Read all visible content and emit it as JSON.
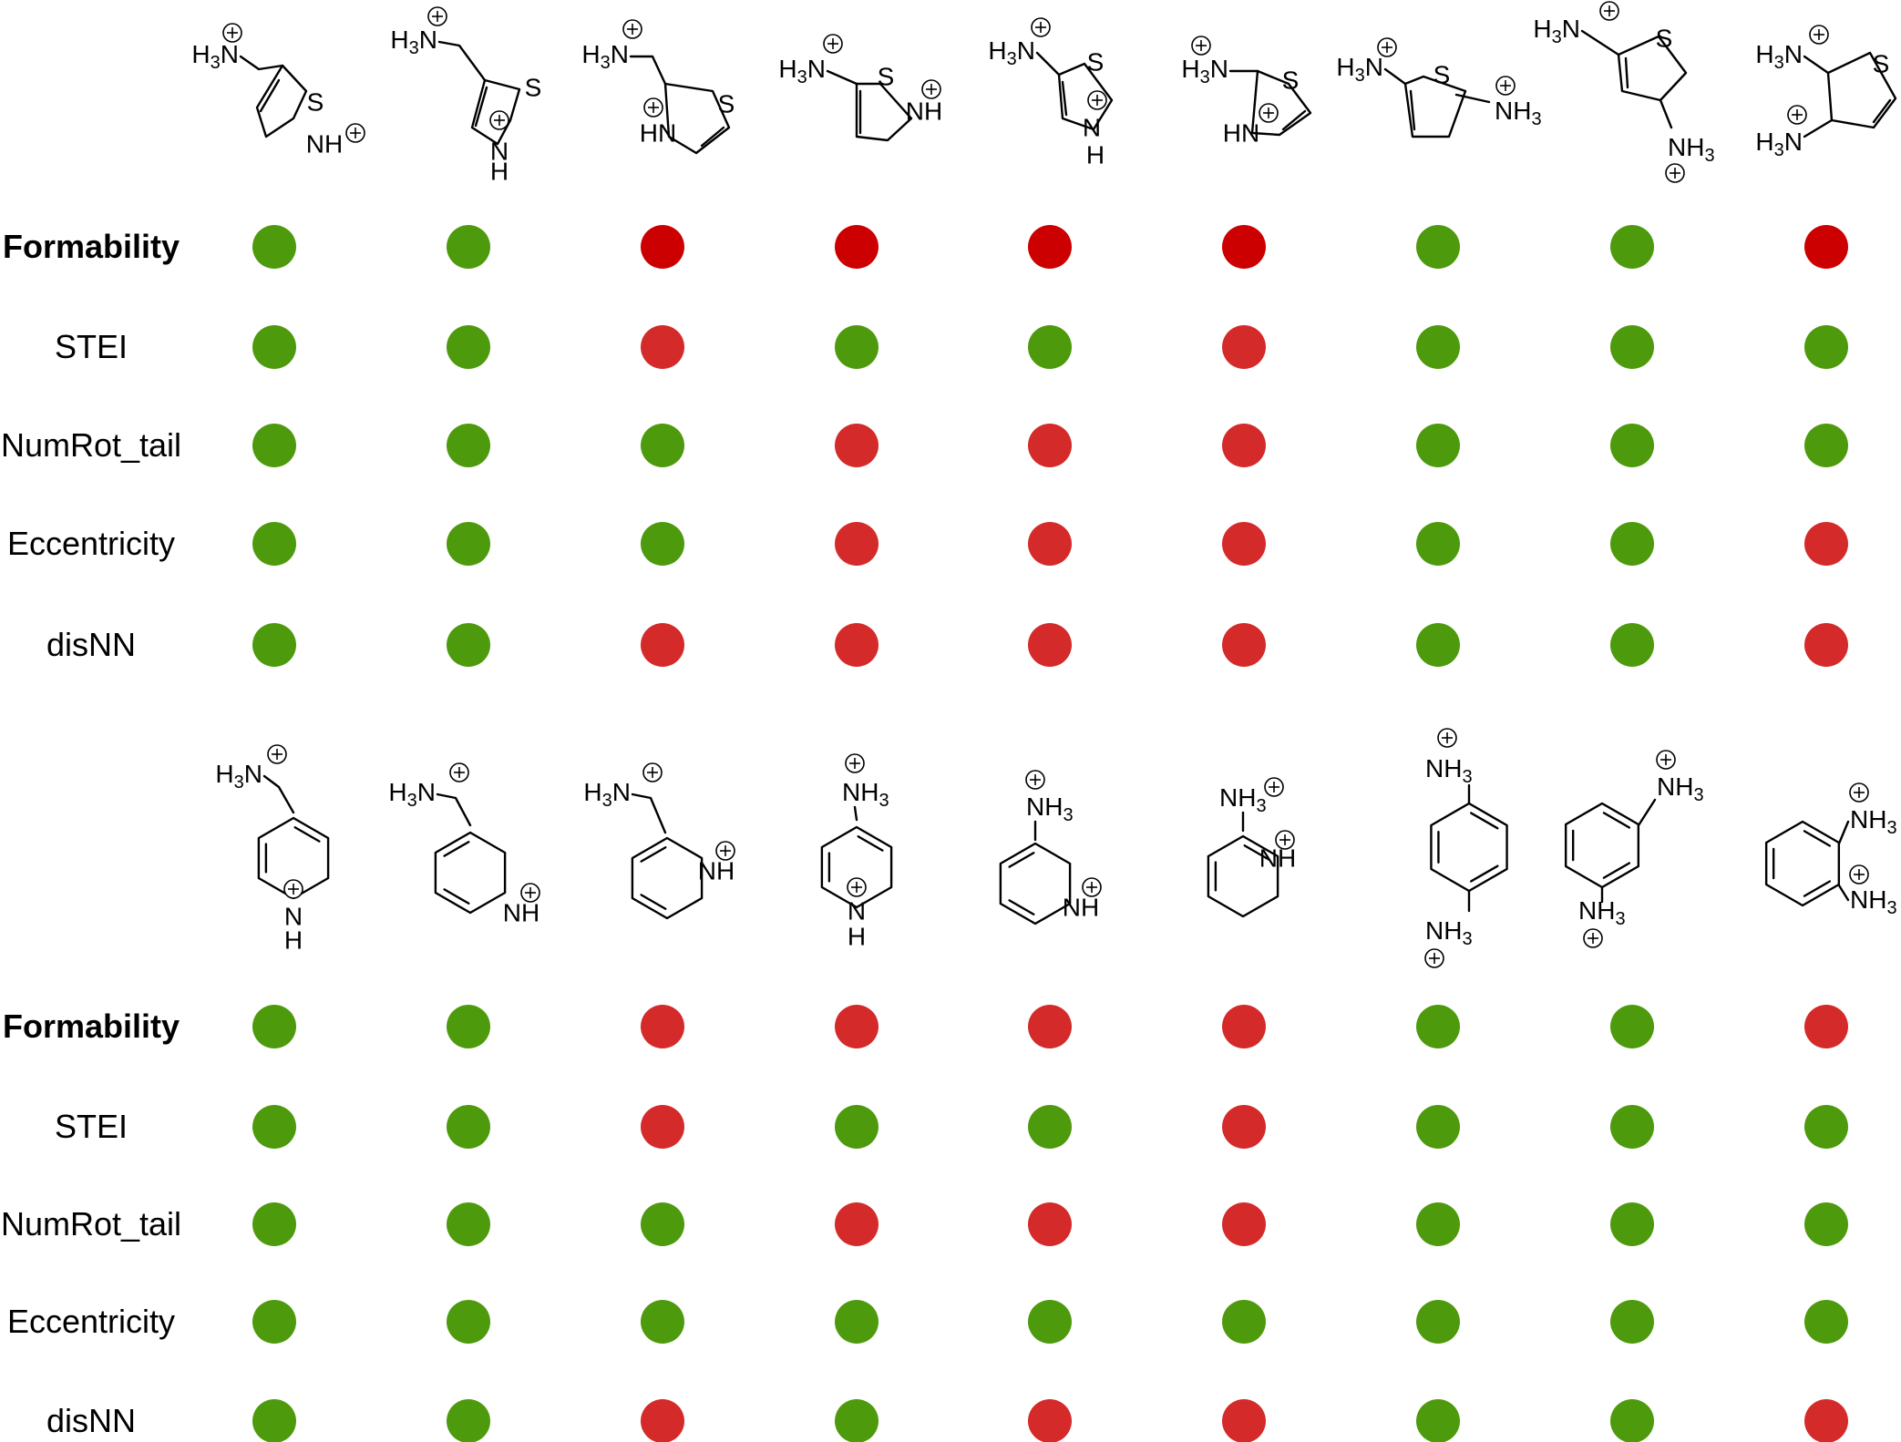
{
  "colors": {
    "pass": "#4e9a0d",
    "fail": "#d42a2a",
    "fail_dark": "#cc0000"
  },
  "panels": [
    {
      "id": "five-membered-rings",
      "rows": [
        {
          "label": "Formability",
          "bold": true,
          "dark_fail": true,
          "values": [
            1,
            1,
            0,
            0,
            0,
            0,
            1,
            1,
            0
          ]
        },
        {
          "label": "STEI",
          "bold": false,
          "values": [
            1,
            1,
            0,
            1,
            1,
            0,
            1,
            1,
            1
          ]
        },
        {
          "label": "NumRot_tail",
          "bold": false,
          "values": [
            1,
            1,
            1,
            0,
            0,
            0,
            1,
            1,
            1
          ]
        },
        {
          "label": "Eccentricity",
          "bold": false,
          "values": [
            1,
            1,
            1,
            0,
            0,
            0,
            1,
            1,
            0
          ]
        },
        {
          "label": "disNN",
          "bold": false,
          "values": [
            1,
            1,
            0,
            0,
            0,
            0,
            1,
            1,
            0
          ]
        }
      ]
    },
    {
      "id": "six-membered-rings",
      "rows": [
        {
          "label": "Formability",
          "bold": true,
          "dark_fail": false,
          "values": [
            1,
            1,
            0,
            0,
            0,
            0,
            1,
            1,
            0
          ]
        },
        {
          "label": "STEI",
          "bold": false,
          "values": [
            1,
            1,
            0,
            1,
            1,
            0,
            1,
            1,
            1
          ]
        },
        {
          "label": "NumRot_tail",
          "bold": false,
          "values": [
            1,
            1,
            1,
            0,
            0,
            0,
            1,
            1,
            1
          ]
        },
        {
          "label": "Eccentricity",
          "bold": false,
          "values": [
            1,
            1,
            1,
            1,
            1,
            1,
            1,
            1,
            1
          ]
        },
        {
          "label": "disNN",
          "bold": false,
          "values": [
            1,
            1,
            0,
            1,
            0,
            0,
            1,
            1,
            0
          ]
        }
      ]
    }
  ],
  "atom_labels": {
    "S": "S",
    "N": "N",
    "H": "H",
    "NH": "NH",
    "HN": "HN",
    "H3N": "H",
    "NH3": "NH",
    "sub3": "3"
  }
}
